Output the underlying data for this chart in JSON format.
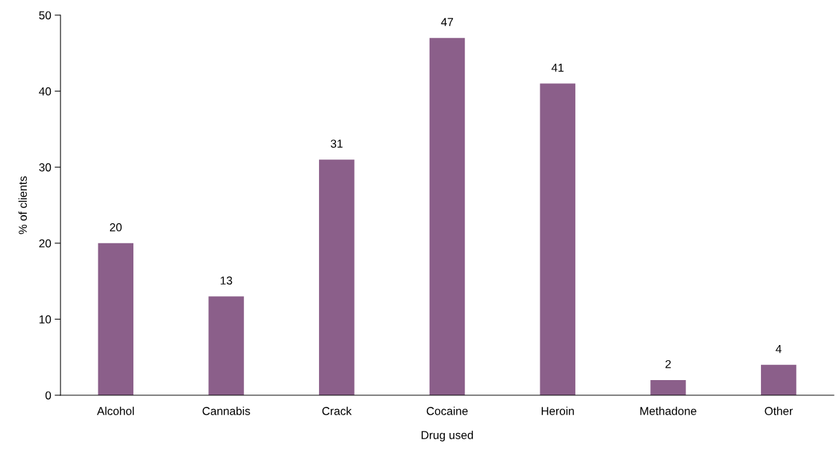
{
  "chart_data": {
    "type": "bar",
    "categories": [
      "Alcohol",
      "Cannabis",
      "Crack",
      "Cocaine",
      "Heroin",
      "Methadone",
      "Other"
    ],
    "values": [
      20,
      13,
      31,
      47,
      41,
      2,
      4
    ],
    "color": "#8b5f8a",
    "xlabel": "Drug used",
    "ylabel": "% of clients",
    "ylim": [
      0,
      50
    ],
    "yticks": [
      0,
      10,
      20,
      30,
      40,
      50
    ],
    "data_labels": true,
    "grid": false
  }
}
